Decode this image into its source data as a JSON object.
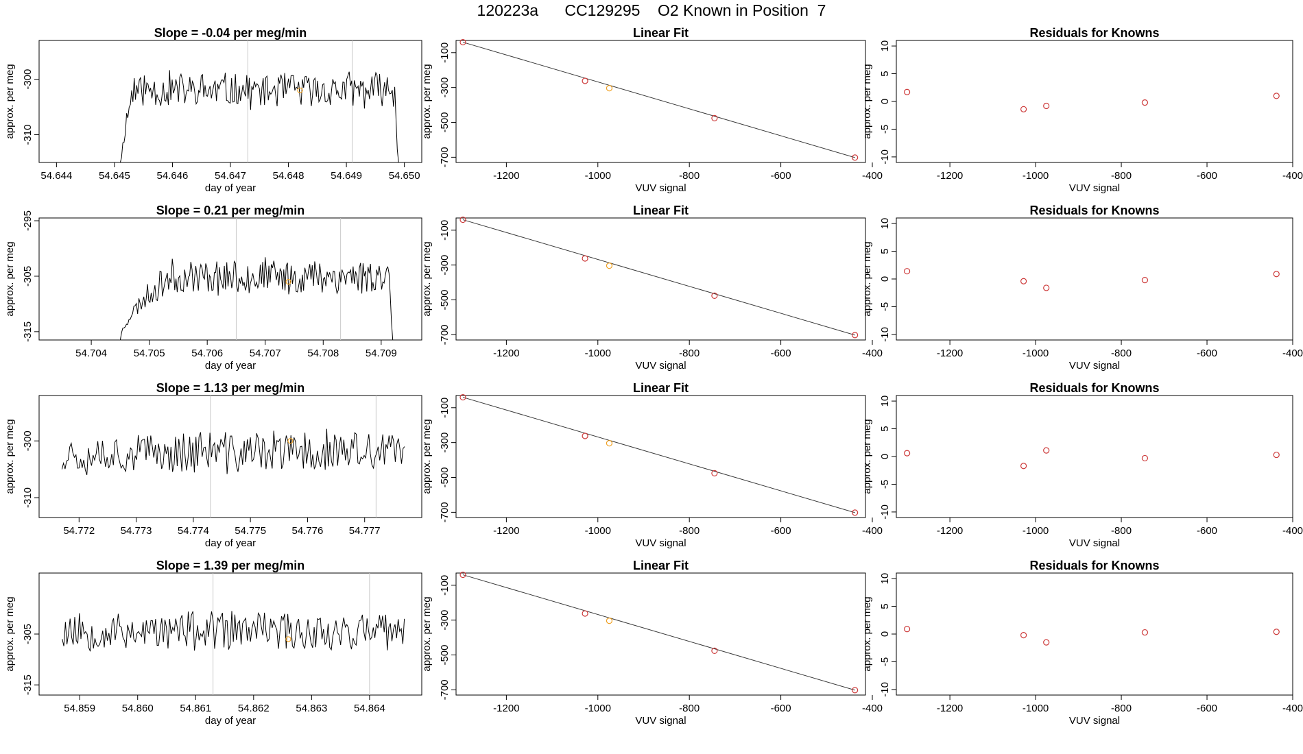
{
  "page_title": "120223a      CC129295    O2 Known in Position  7",
  "colors": {
    "line": "#000000",
    "known_point": "#cd3a3a",
    "sample_point": "#f0a020",
    "marker_line": "#c8c8c8",
    "fit_line": "#3a3a3a"
  },
  "chart_data": [
    {
      "type": "line",
      "panel": "time-series",
      "row": 1,
      "title": "Slope =  -0.04  per meg/min",
      "xlabel": "day of year",
      "ylabel": "approx. per meg",
      "xlim": [
        54.6437,
        54.6503
      ],
      "ylim": [
        -315,
        -293
      ],
      "xticks": [
        54.644,
        54.645,
        54.646,
        54.647,
        54.648,
        54.649,
        54.65
      ],
      "xtick_labels": [
        "54.644",
        "54.645",
        "54.646",
        "54.647",
        "54.648",
        "54.649",
        "54.650"
      ],
      "yticks": [
        -310,
        -300
      ],
      "ytick_labels": [
        "-310",
        "-300"
      ],
      "vlines": [
        54.6473,
        54.6491
      ],
      "highlight": {
        "x": 54.6482,
        "y": -302
      },
      "series": [
        {
          "name": "trace",
          "t0": 54.6451,
          "t1": 54.6499,
          "mean": -302,
          "amp": 3.0,
          "seed": 11,
          "start": -318,
          "end": -318,
          "ramp_len": 10,
          "tail_len": 3
        }
      ]
    },
    {
      "type": "scatter",
      "panel": "linear-fit",
      "row": 1,
      "title": "Linear Fit",
      "xlabel": "VUV signal",
      "ylabel": "approx. per meg",
      "xlim": [
        -1310,
        -415
      ],
      "ylim": [
        -730,
        -30
      ],
      "xticks": [
        -1200,
        -1000,
        -800,
        -600,
        -400
      ],
      "xtick_labels": [
        "-1200",
        "-1000",
        "-800",
        "-600",
        "-400"
      ],
      "yticks": [
        -700,
        -500,
        -300,
        -100
      ],
      "ytick_labels": [
        "-700",
        "-500",
        "-300",
        "-100"
      ],
      "x": [
        -1295,
        -1028,
        -975,
        -745,
        -438
      ],
      "y": [
        -40,
        -262,
        -304,
        -476,
        -702
      ],
      "sample_index": 2,
      "fit": [
        [
          -1295,
          -40
        ],
        [
          -438,
          -702
        ]
      ]
    },
    {
      "type": "scatter",
      "panel": "residuals",
      "row": 1,
      "title": "Residuals for Knowns",
      "xlabel": "VUV signal",
      "ylabel": "approx. per meg",
      "xlim": [
        -1325,
        -400
      ],
      "ylim": [
        -11,
        11
      ],
      "xticks": [
        -1200,
        -1000,
        -800,
        -600,
        -400
      ],
      "xtick_labels": [
        "-1200",
        "-1000",
        "-800",
        "-600",
        "-400"
      ],
      "yticks": [
        -10,
        -5,
        0,
        5,
        10
      ],
      "ytick_labels": [
        "-10",
        "-5",
        "0",
        "5",
        "10"
      ],
      "x": [
        -1300,
        -1028,
        -975,
        -745,
        -438
      ],
      "y": [
        1.7,
        -1.4,
        -0.8,
        -0.2,
        1.0
      ]
    },
    {
      "type": "line",
      "panel": "time-series",
      "row": 2,
      "title": "Slope =  0.21  per meg/min",
      "xlabel": "day of year",
      "ylabel": "approx. per meg",
      "xlim": [
        54.7031,
        54.7097
      ],
      "ylim": [
        -316.5,
        -294.5
      ],
      "xticks": [
        54.704,
        54.705,
        54.706,
        54.707,
        54.708,
        54.709
      ],
      "xtick_labels": [
        "54.704",
        "54.705",
        "54.706",
        "54.707",
        "54.708",
        "54.709"
      ],
      "yticks": [
        -315,
        -305,
        -295
      ],
      "ytick_labels": [
        "-315",
        "-305",
        "-295"
      ],
      "vlines": [
        54.7065,
        54.7083
      ],
      "highlight": {
        "x": 54.7074,
        "y": -306
      },
      "series": [
        {
          "name": "trace",
          "t0": 54.7045,
          "t1": 54.7092,
          "mean": -305,
          "amp": 3.0,
          "seed": 23,
          "start": -316.5,
          "end": -316.5,
          "ramp_len": 40,
          "tail_len": 3
        }
      ]
    },
    {
      "type": "scatter",
      "panel": "linear-fit",
      "row": 2,
      "title": "Linear Fit",
      "xlabel": "VUV signal",
      "ylabel": "approx. per meg",
      "xlim": [
        -1310,
        -415
      ],
      "ylim": [
        -730,
        -30
      ],
      "xticks": [
        -1200,
        -1000,
        -800,
        -600,
        -400
      ],
      "xtick_labels": [
        "-1200",
        "-1000",
        "-800",
        "-600",
        "-400"
      ],
      "yticks": [
        -700,
        -500,
        -300,
        -100
      ],
      "ytick_labels": [
        "-700",
        "-500",
        "-300",
        "-100"
      ],
      "x": [
        -1295,
        -1028,
        -975,
        -745,
        -438
      ],
      "y": [
        -40,
        -262,
        -304,
        -476,
        -702
      ],
      "sample_index": 2,
      "fit": [
        [
          -1295,
          -40
        ],
        [
          -438,
          -702
        ]
      ]
    },
    {
      "type": "scatter",
      "panel": "residuals",
      "row": 2,
      "title": "Residuals for Knowns",
      "xlabel": "VUV signal",
      "ylabel": "approx. per meg",
      "xlim": [
        -1325,
        -400
      ],
      "ylim": [
        -11,
        11
      ],
      "xticks": [
        -1200,
        -1000,
        -800,
        -600,
        -400
      ],
      "xtick_labels": [
        "-1200",
        "-1000",
        "-800",
        "-600",
        "-400"
      ],
      "yticks": [
        -10,
        -5,
        0,
        5,
        10
      ],
      "ytick_labels": [
        "-10",
        "-5",
        "0",
        "5",
        "10"
      ],
      "x": [
        -1300,
        -1028,
        -975,
        -745,
        -438
      ],
      "y": [
        1.4,
        -0.4,
        -1.6,
        -0.2,
        0.9
      ]
    },
    {
      "type": "line",
      "panel": "time-series",
      "row": 3,
      "title": "Slope =  1.13  per meg/min",
      "xlabel": "day of year",
      "ylabel": "approx. per meg",
      "xlim": [
        54.7713,
        54.778
      ],
      "ylim": [
        -313.5,
        -292
      ],
      "xticks": [
        54.772,
        54.773,
        54.774,
        54.775,
        54.776,
        54.777
      ],
      "xtick_labels": [
        "54.772",
        "54.773",
        "54.774",
        "54.775",
        "54.776",
        "54.777"
      ],
      "yticks": [
        -310,
        -300
      ],
      "ytick_labels": [
        "-310",
        "-300"
      ],
      "vlines": [
        54.7743,
        54.7772
      ],
      "highlight": {
        "x": 54.7757,
        "y": -300
      },
      "series": [
        {
          "name": "trace",
          "t0": 54.7717,
          "t1": 54.7777,
          "mean": -302,
          "amp": 3.5,
          "seed": 37,
          "start": -305,
          "end": -301,
          "ramp_len": 0,
          "tail_len": 0
        }
      ]
    },
    {
      "type": "scatter",
      "panel": "linear-fit",
      "row": 3,
      "title": "Linear Fit",
      "xlabel": "VUV signal",
      "ylabel": "approx. per meg",
      "xlim": [
        -1310,
        -415
      ],
      "ylim": [
        -730,
        -30
      ],
      "xticks": [
        -1200,
        -1000,
        -800,
        -600,
        -400
      ],
      "xtick_labels": [
        "-1200",
        "-1000",
        "-800",
        "-600",
        "-400"
      ],
      "yticks": [
        -700,
        -500,
        -300,
        -100
      ],
      "ytick_labels": [
        "-700",
        "-500",
        "-300",
        "-100"
      ],
      "x": [
        -1295,
        -1028,
        -975,
        -745,
        -438
      ],
      "y": [
        -40,
        -262,
        -304,
        -476,
        -702
      ],
      "sample_index": 2,
      "fit": [
        [
          -1295,
          -40
        ],
        [
          -438,
          -702
        ]
      ]
    },
    {
      "type": "scatter",
      "panel": "residuals",
      "row": 3,
      "title": "Residuals for Knowns",
      "xlabel": "VUV signal",
      "ylabel": "approx. per meg",
      "xlim": [
        -1325,
        -400
      ],
      "ylim": [
        -11,
        11
      ],
      "xticks": [
        -1200,
        -1000,
        -800,
        -600,
        -400
      ],
      "xtick_labels": [
        "-1200",
        "-1000",
        "-800",
        "-600",
        "-400"
      ],
      "yticks": [
        -10,
        -5,
        0,
        5,
        10
      ],
      "ytick_labels": [
        "-10",
        "-5",
        "0",
        "5",
        "10"
      ],
      "x": [
        -1300,
        -1028,
        -975,
        -745,
        -438
      ],
      "y": [
        0.6,
        -1.7,
        1.1,
        -0.3,
        0.3
      ]
    },
    {
      "type": "line",
      "panel": "time-series",
      "row": 4,
      "title": "Slope =  1.39  per meg/min",
      "xlabel": "day of year",
      "ylabel": "approx. per meg",
      "xlim": [
        54.8583,
        54.8649
      ],
      "ylim": [
        -317,
        -293
      ],
      "xticks": [
        54.859,
        54.86,
        54.861,
        54.862,
        54.863,
        54.864
      ],
      "xtick_labels": [
        "54.859",
        "54.860",
        "54.861",
        "54.862",
        "54.863",
        "54.864"
      ],
      "yticks": [
        -315,
        -305
      ],
      "ytick_labels": [
        "-315",
        "-305"
      ],
      "vlines": [
        54.8613,
        54.864
      ],
      "highlight": {
        "x": 54.8626,
        "y": -306
      },
      "series": [
        {
          "name": "trace",
          "t0": 54.8587,
          "t1": 54.8646,
          "mean": -304.5,
          "amp": 3.5,
          "seed": 53,
          "start": -306,
          "end": -302,
          "ramp_len": 0,
          "tail_len": 0
        }
      ]
    },
    {
      "type": "scatter",
      "panel": "linear-fit",
      "row": 4,
      "title": "Linear Fit",
      "xlabel": "VUV signal",
      "ylabel": "approx. per meg",
      "xlim": [
        -1310,
        -415
      ],
      "ylim": [
        -730,
        -30
      ],
      "xticks": [
        -1200,
        -1000,
        -800,
        -600,
        -400
      ],
      "xtick_labels": [
        "-1200",
        "-1000",
        "-800",
        "-600",
        "-400"
      ],
      "yticks": [
        -700,
        -500,
        -300,
        -100
      ],
      "ytick_labels": [
        "-700",
        "-500",
        "-300",
        "-100"
      ],
      "x": [
        -1295,
        -1028,
        -975,
        -745,
        -438
      ],
      "y": [
        -40,
        -262,
        -304,
        -476,
        -702
      ],
      "sample_index": 2,
      "fit": [
        [
          -1295,
          -40
        ],
        [
          -438,
          -702
        ]
      ]
    },
    {
      "type": "scatter",
      "panel": "residuals",
      "row": 4,
      "title": "Residuals for Knowns",
      "xlabel": "VUV signal",
      "ylabel": "approx. per meg",
      "xlim": [
        -1325,
        -400
      ],
      "ylim": [
        -11,
        11
      ],
      "xticks": [
        -1200,
        -1000,
        -800,
        -600,
        -400
      ],
      "xtick_labels": [
        "-1200",
        "-1000",
        "-800",
        "-600",
        "-400"
      ],
      "yticks": [
        -10,
        -5,
        0,
        5,
        10
      ],
      "ytick_labels": [
        "-10",
        "-5",
        "0",
        "5",
        "10"
      ],
      "x": [
        -1300,
        -1028,
        -975,
        -745,
        -438
      ],
      "y": [
        0.9,
        -0.2,
        -1.5,
        0.3,
        0.4
      ]
    }
  ]
}
